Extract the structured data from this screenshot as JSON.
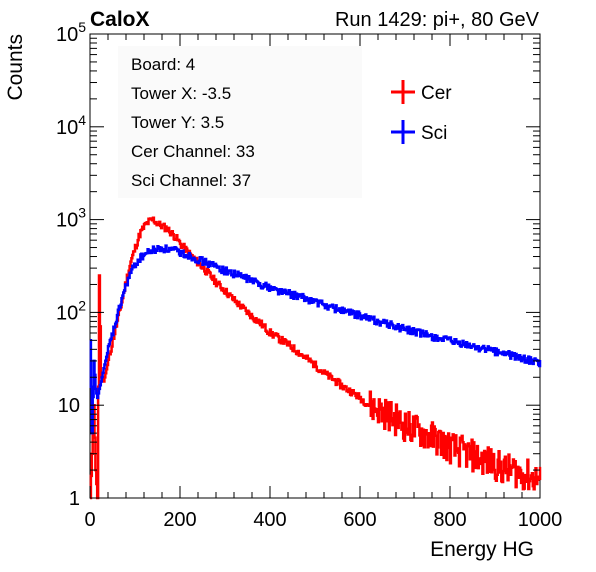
{
  "header": {
    "experiment": "CaloX",
    "run_label": "Run 1429: pi+, 80 GeV"
  },
  "info_box": {
    "lines": [
      "Board: 4",
      "Tower X: -3.5",
      "Tower Y: 3.5",
      "Cer Channel: 33",
      "Sci Channel: 37"
    ]
  },
  "chart_data": {
    "type": "line",
    "title": "Run 1429: pi+, 80 GeV",
    "xlabel": "Energy HG",
    "ylabel": "Counts",
    "xlim": [
      0,
      1000
    ],
    "ylim": [
      1,
      100000
    ],
    "yscale": "log",
    "grid": false,
    "legend_position": "top-right",
    "x_ticks": [
      0,
      200,
      400,
      600,
      800,
      1000
    ],
    "x_tick_labels": [
      "0",
      "200",
      "400",
      "600",
      "800",
      "1000"
    ],
    "y_ticks": [
      1,
      10,
      100,
      1000,
      10000,
      100000
    ],
    "y_tick_labels": [
      {
        "base": "1",
        "exp": ""
      },
      {
        "base": "10",
        "exp": ""
      },
      {
        "base": "10",
        "exp": "2"
      },
      {
        "base": "10",
        "exp": "3"
      },
      {
        "base": "10",
        "exp": "4"
      },
      {
        "base": "10",
        "exp": "5"
      }
    ],
    "series": [
      {
        "name": "Cer",
        "color": "#ff0000",
        "x": [
          0,
          4,
          8,
          12,
          16,
          20,
          24,
          30,
          40,
          50,
          60,
          70,
          80,
          90,
          100,
          110,
          120,
          130,
          140,
          150,
          160,
          170,
          180,
          190,
          200,
          220,
          240,
          260,
          280,
          300,
          320,
          340,
          360,
          380,
          400,
          420,
          440,
          460,
          480,
          500,
          520,
          540,
          560,
          580,
          600,
          620,
          640,
          660,
          680,
          700,
          720,
          740,
          760,
          780,
          800,
          820,
          840,
          860,
          880,
          900,
          920,
          940,
          960,
          980,
          1000
        ],
        "y": [
          1,
          3,
          10,
          2,
          1,
          250,
          20,
          18,
          30,
          50,
          80,
          130,
          220,
          350,
          500,
          700,
          850,
          950,
          1000,
          900,
          850,
          800,
          720,
          640,
          550,
          430,
          340,
          270,
          210,
          170,
          135,
          110,
          90,
          75,
          60,
          52,
          45,
          38,
          32,
          27,
          22,
          19,
          16,
          14,
          12,
          10,
          9,
          8,
          7,
          6,
          5.5,
          5,
          4.5,
          4,
          3.5,
          3.2,
          3,
          2.7,
          2.5,
          2.3,
          2,
          2,
          1.8,
          1.7,
          1.6
        ]
      },
      {
        "name": "Sci",
        "color": "#0000ff",
        "x": [
          0,
          4,
          8,
          12,
          16,
          20,
          24,
          30,
          40,
          50,
          60,
          70,
          80,
          90,
          100,
          110,
          120,
          130,
          140,
          150,
          160,
          170,
          180,
          190,
          200,
          220,
          240,
          260,
          280,
          300,
          320,
          340,
          360,
          380,
          400,
          420,
          440,
          460,
          480,
          500,
          520,
          540,
          560,
          580,
          600,
          620,
          640,
          660,
          680,
          700,
          720,
          740,
          760,
          780,
          800,
          820,
          840,
          860,
          880,
          900,
          920,
          940,
          960,
          980,
          1000
        ],
        "y": [
          50,
          5,
          30,
          15,
          12,
          15,
          18,
          25,
          40,
          60,
          90,
          140,
          200,
          270,
          330,
          380,
          420,
          450,
          470,
          480,
          490,
          480,
          470,
          460,
          440,
          410,
          370,
          340,
          310,
          280,
          260,
          240,
          220,
          200,
          185,
          170,
          160,
          150,
          140,
          130,
          120,
          112,
          105,
          98,
          92,
          86,
          80,
          75,
          70,
          66,
          62,
          58,
          55,
          52,
          49,
          46,
          44,
          42,
          40,
          38,
          36,
          34,
          32,
          30,
          28
        ]
      }
    ]
  }
}
